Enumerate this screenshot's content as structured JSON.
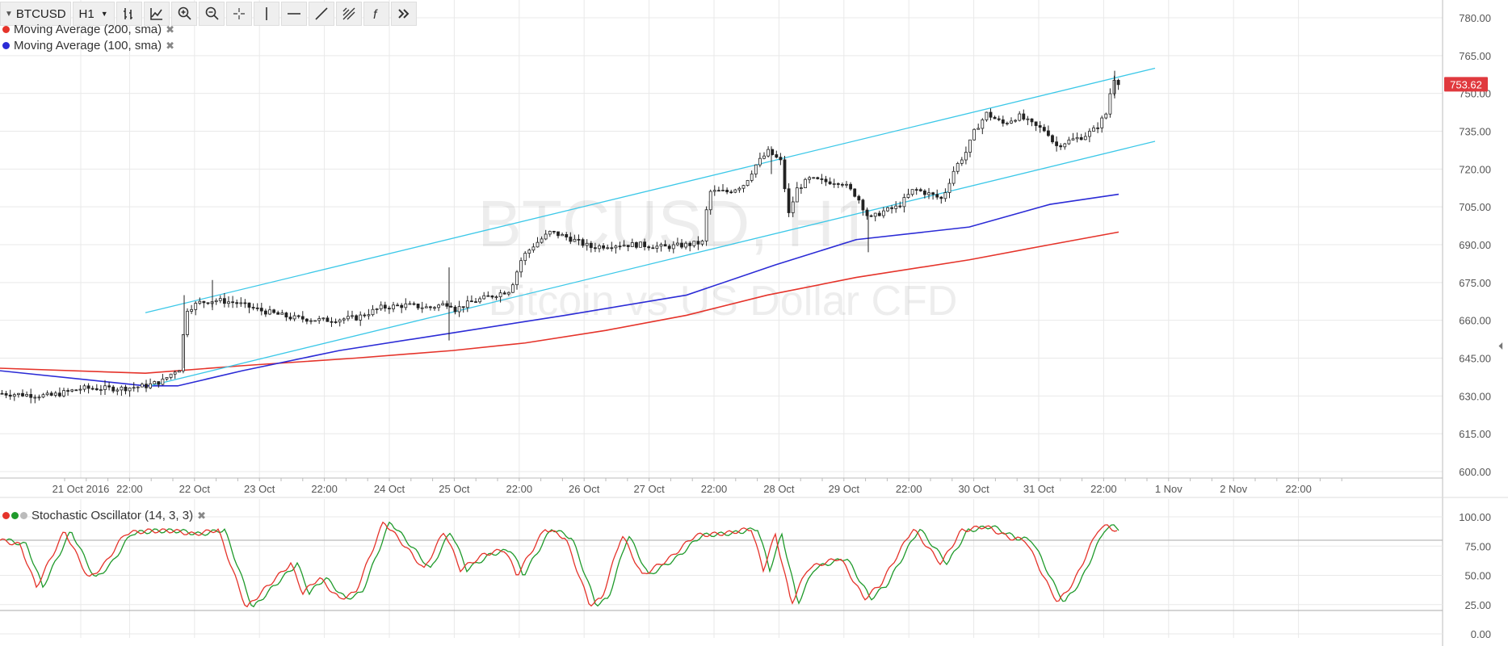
{
  "toolbar": {
    "symbol": "BTCUSD",
    "interval": "H1",
    "buttons": [
      {
        "name": "bar-style-icon",
        "glyph": "bars"
      },
      {
        "name": "indicators-icon",
        "glyph": "indicators"
      },
      {
        "name": "zoom-in-icon",
        "glyph": "zoomin"
      },
      {
        "name": "zoom-out-icon",
        "glyph": "zoomout"
      },
      {
        "name": "crosshair-icon",
        "glyph": "cross"
      },
      {
        "name": "vertical-line-icon",
        "glyph": "vline"
      },
      {
        "name": "horizontal-line-icon",
        "glyph": "hline"
      },
      {
        "name": "trend-line-icon",
        "glyph": "trend"
      },
      {
        "name": "fib-tool-icon",
        "glyph": "fib"
      },
      {
        "name": "function-icon",
        "glyph": "f"
      },
      {
        "name": "more-icon",
        "glyph": "more"
      }
    ]
  },
  "legend": {
    "ma200": "Moving Average (200, sma)",
    "ma100": "Moving Average (100, sma)",
    "stoch": "Stochastic Oscillator (14, 3, 3)",
    "close": "✖"
  },
  "watermark": {
    "symbol": "BTCUSD, H1",
    "description": "Bitcoin vs US Dollar CFD"
  },
  "colors": {
    "ma200": "#e5332a",
    "ma100": "#2b2bd6",
    "channel": "#3cc8e8",
    "stoch_k": "#e5332a",
    "stoch_d": "#1f9a2b",
    "price_badge": "#e0393e",
    "grid": "#e9e9e9"
  },
  "chart_data": {
    "type": "candlestick",
    "current_price": "753.62",
    "price_axis": {
      "min": 600,
      "max": 780,
      "ticks": [
        "600.00",
        "615.00",
        "630.00",
        "645.00",
        "660.00",
        "675.00",
        "690.00",
        "705.00",
        "720.00",
        "735.00",
        "750.00",
        "765.00",
        "780.00"
      ]
    },
    "time_axis": {
      "labels": [
        "21 Oct 2016",
        "22:00",
        "22 Oct",
        "23 Oct",
        "22:00",
        "24 Oct",
        "25 Oct",
        "22:00",
        "26 Oct",
        "27 Oct",
        "22:00",
        "28 Oct",
        "29 Oct",
        "22:00",
        "30 Oct",
        "31 Oct",
        "22:00",
        "1 Nov",
        "2 Nov",
        "22:00"
      ]
    },
    "price_path": [
      [
        0,
        631
      ],
      [
        60,
        630
      ],
      [
        100,
        633
      ],
      [
        150,
        633
      ],
      [
        180,
        634
      ],
      [
        200,
        636
      ],
      [
        215,
        640
      ],
      [
        222,
        641
      ],
      [
        228,
        664
      ],
      [
        245,
        667
      ],
      [
        265,
        668
      ],
      [
        290,
        667
      ],
      [
        320,
        664
      ],
      [
        360,
        661
      ],
      [
        400,
        660
      ],
      [
        440,
        661
      ],
      [
        470,
        665
      ],
      [
        500,
        666
      ],
      [
        530,
        665
      ],
      [
        556,
        667
      ],
      [
        560,
        664
      ],
      [
        580,
        667
      ],
      [
        600,
        669
      ],
      [
        630,
        672
      ],
      [
        645,
        685
      ],
      [
        660,
        690
      ],
      [
        680,
        695
      ],
      [
        700,
        693
      ],
      [
        730,
        689
      ],
      [
        760,
        690
      ],
      [
        790,
        690
      ],
      [
        820,
        689
      ],
      [
        850,
        690
      ],
      [
        870,
        691
      ],
      [
        875,
        711
      ],
      [
        900,
        711
      ],
      [
        920,
        714
      ],
      [
        935,
        722
      ],
      [
        950,
        727
      ],
      [
        965,
        723
      ],
      [
        975,
        702
      ],
      [
        985,
        712
      ],
      [
        1000,
        716
      ],
      [
        1020,
        715
      ],
      [
        1040,
        715
      ],
      [
        1060,
        709
      ],
      [
        1075,
        700
      ],
      [
        1090,
        703
      ],
      [
        1110,
        705
      ],
      [
        1130,
        712
      ],
      [
        1150,
        710
      ],
      [
        1165,
        708
      ],
      [
        1180,
        720
      ],
      [
        1195,
        727
      ],
      [
        1205,
        735
      ],
      [
        1220,
        742
      ],
      [
        1240,
        738
      ],
      [
        1260,
        741
      ],
      [
        1280,
        737
      ],
      [
        1295,
        735
      ],
      [
        1305,
        729
      ],
      [
        1320,
        731
      ],
      [
        1340,
        733
      ],
      [
        1355,
        736
      ],
      [
        1368,
        742
      ],
      [
        1372,
        749
      ],
      [
        1378,
        756
      ],
      [
        1385,
        754
      ]
    ],
    "channel": {
      "upper": [
        [
          180,
          663
        ],
        [
          1430,
          760
        ]
      ],
      "lower": [
        [
          185,
          634
        ],
        [
          1430,
          731
        ]
      ]
    },
    "moving_averages": [
      {
        "name": "Moving Average (200, sma)",
        "points": [
          [
            0,
            641
          ],
          [
            180,
            639
          ],
          [
            300,
            642
          ],
          [
            440,
            645
          ],
          [
            560,
            648
          ],
          [
            650,
            651
          ],
          [
            750,
            656
          ],
          [
            850,
            662
          ],
          [
            950,
            670
          ],
          [
            1060,
            677
          ],
          [
            1200,
            684
          ],
          [
            1300,
            690
          ],
          [
            1385,
            695
          ]
        ]
      },
      {
        "name": "Moving Average (100, sma)",
        "points": [
          [
            0,
            640
          ],
          [
            120,
            636
          ],
          [
            180,
            634
          ],
          [
            220,
            634
          ],
          [
            300,
            640
          ],
          [
            420,
            648
          ],
          [
            560,
            655
          ],
          [
            700,
            662
          ],
          [
            850,
            670
          ],
          [
            960,
            682
          ],
          [
            1060,
            692
          ],
          [
            1200,
            697
          ],
          [
            1300,
            706
          ],
          [
            1385,
            710
          ]
        ]
      }
    ],
    "stochastic": {
      "ticks": [
        "0.00",
        "25.00",
        "50.00",
        "75.00",
        "100.00"
      ],
      "levels": [
        20,
        80
      ],
      "k_path": [
        [
          0,
          80
        ],
        [
          25,
          76
        ],
        [
          45,
          40
        ],
        [
          80,
          88
        ],
        [
          110,
          47
        ],
        [
          130,
          60
        ],
        [
          155,
          86
        ],
        [
          185,
          88
        ],
        [
          215,
          88
        ],
        [
          240,
          85
        ],
        [
          270,
          89
        ],
        [
          305,
          22
        ],
        [
          330,
          40
        ],
        [
          360,
          60
        ],
        [
          375,
          35
        ],
        [
          395,
          48
        ],
        [
          420,
          30
        ],
        [
          440,
          35
        ],
        [
          475,
          96
        ],
        [
          510,
          68
        ],
        [
          525,
          55
        ],
        [
          550,
          88
        ],
        [
          570,
          55
        ],
        [
          600,
          68
        ],
        [
          625,
          72
        ],
        [
          640,
          50
        ],
        [
          675,
          90
        ],
        [
          700,
          82
        ],
        [
          730,
          25
        ],
        [
          745,
          30
        ],
        [
          770,
          85
        ],
        [
          795,
          50
        ],
        [
          830,
          65
        ],
        [
          860,
          84
        ],
        [
          900,
          86
        ],
        [
          930,
          90
        ],
        [
          945,
          55
        ],
        [
          960,
          85
        ],
        [
          980,
          26
        ],
        [
          1000,
          56
        ],
        [
          1040,
          65
        ],
        [
          1070,
          30
        ],
        [
          1090,
          42
        ],
        [
          1130,
          90
        ],
        [
          1165,
          60
        ],
        [
          1190,
          88
        ],
        [
          1220,
          92
        ],
        [
          1250,
          82
        ],
        [
          1270,
          80
        ],
        [
          1300,
          38
        ],
        [
          1310,
          27
        ],
        [
          1330,
          45
        ],
        [
          1360,
          90
        ],
        [
          1372,
          92
        ],
        [
          1385,
          87
        ]
      ],
      "d_offset": 8
    }
  }
}
